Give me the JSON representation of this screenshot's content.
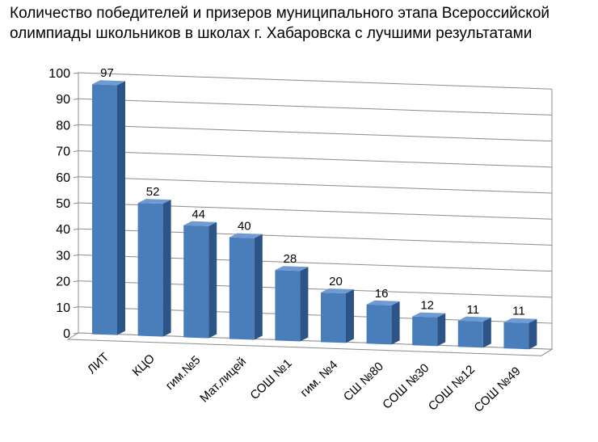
{
  "chart_data": {
    "type": "bar",
    "title": "Количество победителей и призеров муниципального этапа Всероссийской олимпиады школьников в школах г. Хабаровска с лучшими результатами",
    "xlabel": "",
    "ylabel": "",
    "categories": [
      "ЛИТ",
      "КЦО",
      "гим.№5",
      "Мат.лицей",
      "СОШ №1",
      "гим. №4",
      "СШ №80",
      "СОШ №30",
      "СОШ №12",
      "СОШ №49"
    ],
    "values": [
      97,
      52,
      44,
      40,
      28,
      20,
      16,
      12,
      11,
      11
    ],
    "data_labels": [
      "97",
      "52",
      "44",
      "40",
      "28",
      "20",
      "16",
      "12",
      "11",
      "11"
    ],
    "ylim": [
      0,
      100
    ],
    "yticks": [
      "0",
      "10",
      "20",
      "30",
      "40",
      "50",
      "60",
      "70",
      "80",
      "90",
      "100"
    ],
    "grid": true,
    "legend": "none",
    "bar_style": "3d",
    "colors": {
      "bar_front": "#4a7ebb",
      "bar_side": "#2c5486",
      "bar_top": "#6f9bd2",
      "grid": "#8c8c8c"
    }
  }
}
